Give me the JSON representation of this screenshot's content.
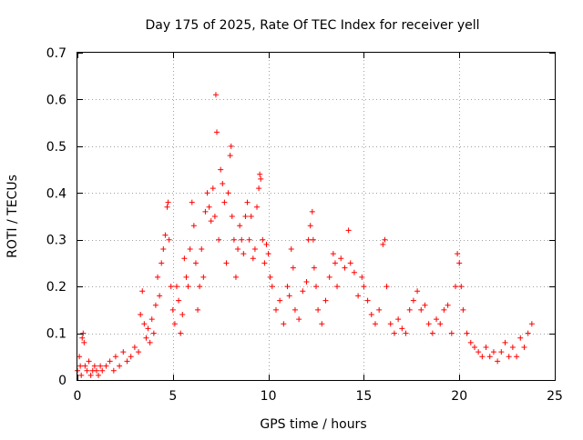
{
  "chart_data": {
    "type": "scatter",
    "title": "Day 175 of 2025, Rate Of TEC Index for receiver yell",
    "xlabel": "GPS time / hours",
    "ylabel": "ROTI / TECUs",
    "xlim": [
      0,
      25
    ],
    "ylim": [
      0,
      0.7
    ],
    "x_ticks": [
      "0",
      "5",
      "10",
      "15",
      "20",
      "25"
    ],
    "y_ticks": [
      "0",
      "0.1",
      "0.2",
      "0.3",
      "0.4",
      "0.5",
      "0.6",
      "0.7"
    ],
    "grid": true,
    "marker": "plus",
    "color": "#ff0000",
    "series": [
      {
        "points": [
          [
            0.0,
            0.02
          ],
          [
            0.1,
            0.05
          ],
          [
            0.15,
            0.03
          ],
          [
            0.2,
            0.01
          ],
          [
            0.25,
            0.09
          ],
          [
            0.3,
            0.1
          ],
          [
            0.35,
            0.08
          ],
          [
            0.4,
            0.03
          ],
          [
            0.5,
            0.02
          ],
          [
            0.6,
            0.04
          ],
          [
            0.7,
            0.01
          ],
          [
            0.8,
            0.02
          ],
          [
            0.9,
            0.03
          ],
          [
            1.0,
            0.02
          ],
          [
            1.1,
            0.01
          ],
          [
            1.2,
            0.03
          ],
          [
            1.3,
            0.02
          ],
          [
            1.5,
            0.03
          ],
          [
            1.7,
            0.04
          ],
          [
            1.9,
            0.02
          ],
          [
            2.0,
            0.05
          ],
          [
            2.2,
            0.03
          ],
          [
            2.4,
            0.06
          ],
          [
            2.6,
            0.04
          ],
          [
            2.8,
            0.05
          ],
          [
            3.0,
            0.07
          ],
          [
            3.2,
            0.06
          ],
          [
            3.3,
            0.14
          ],
          [
            3.4,
            0.19
          ],
          [
            3.5,
            0.12
          ],
          [
            3.6,
            0.09
          ],
          [
            3.7,
            0.11
          ],
          [
            3.8,
            0.08
          ],
          [
            3.9,
            0.13
          ],
          [
            4.0,
            0.1
          ],
          [
            4.1,
            0.16
          ],
          [
            4.2,
            0.22
          ],
          [
            4.3,
            0.18
          ],
          [
            4.4,
            0.25
          ],
          [
            4.5,
            0.28
          ],
          [
            4.6,
            0.31
          ],
          [
            4.7,
            0.37
          ],
          [
            4.75,
            0.38
          ],
          [
            4.8,
            0.3
          ],
          [
            4.9,
            0.2
          ],
          [
            5.0,
            0.15
          ],
          [
            5.1,
            0.12
          ],
          [
            5.2,
            0.2
          ],
          [
            5.3,
            0.17
          ],
          [
            5.4,
            0.1
          ],
          [
            5.5,
            0.14
          ],
          [
            5.6,
            0.26
          ],
          [
            5.7,
            0.22
          ],
          [
            5.8,
            0.2
          ],
          [
            5.9,
            0.28
          ],
          [
            6.0,
            0.38
          ],
          [
            6.1,
            0.33
          ],
          [
            6.2,
            0.25
          ],
          [
            6.3,
            0.15
          ],
          [
            6.4,
            0.2
          ],
          [
            6.5,
            0.28
          ],
          [
            6.6,
            0.22
          ],
          [
            6.7,
            0.36
          ],
          [
            6.8,
            0.4
          ],
          [
            6.9,
            0.37
          ],
          [
            7.0,
            0.34
          ],
          [
            7.1,
            0.41
          ],
          [
            7.2,
            0.35
          ],
          [
            7.25,
            0.61
          ],
          [
            7.3,
            0.53
          ],
          [
            7.4,
            0.3
          ],
          [
            7.5,
            0.45
          ],
          [
            7.6,
            0.42
          ],
          [
            7.7,
            0.38
          ],
          [
            7.8,
            0.25
          ],
          [
            7.9,
            0.4
          ],
          [
            8.0,
            0.48
          ],
          [
            8.05,
            0.5
          ],
          [
            8.1,
            0.35
          ],
          [
            8.2,
            0.3
          ],
          [
            8.3,
            0.22
          ],
          [
            8.4,
            0.28
          ],
          [
            8.5,
            0.33
          ],
          [
            8.6,
            0.3
          ],
          [
            8.7,
            0.27
          ],
          [
            8.8,
            0.35
          ],
          [
            8.9,
            0.38
          ],
          [
            9.0,
            0.3
          ],
          [
            9.1,
            0.35
          ],
          [
            9.2,
            0.26
          ],
          [
            9.3,
            0.28
          ],
          [
            9.4,
            0.37
          ],
          [
            9.5,
            0.41
          ],
          [
            9.55,
            0.44
          ],
          [
            9.6,
            0.43
          ],
          [
            9.7,
            0.3
          ],
          [
            9.8,
            0.25
          ],
          [
            9.9,
            0.29
          ],
          [
            10.0,
            0.27
          ],
          [
            10.1,
            0.22
          ],
          [
            10.2,
            0.2
          ],
          [
            10.4,
            0.15
          ],
          [
            10.6,
            0.17
          ],
          [
            10.8,
            0.12
          ],
          [
            11.0,
            0.2
          ],
          [
            11.1,
            0.18
          ],
          [
            11.2,
            0.28
          ],
          [
            11.3,
            0.24
          ],
          [
            11.4,
            0.15
          ],
          [
            11.6,
            0.13
          ],
          [
            11.8,
            0.19
          ],
          [
            12.0,
            0.21
          ],
          [
            12.1,
            0.3
          ],
          [
            12.2,
            0.33
          ],
          [
            12.3,
            0.36
          ],
          [
            12.35,
            0.3
          ],
          [
            12.4,
            0.24
          ],
          [
            12.5,
            0.2
          ],
          [
            12.6,
            0.15
          ],
          [
            12.8,
            0.12
          ],
          [
            13.0,
            0.17
          ],
          [
            13.2,
            0.22
          ],
          [
            13.4,
            0.27
          ],
          [
            13.5,
            0.25
          ],
          [
            13.6,
            0.2
          ],
          [
            13.8,
            0.26
          ],
          [
            14.0,
            0.24
          ],
          [
            14.2,
            0.32
          ],
          [
            14.3,
            0.25
          ],
          [
            14.5,
            0.23
          ],
          [
            14.7,
            0.18
          ],
          [
            14.9,
            0.22
          ],
          [
            15.0,
            0.2
          ],
          [
            15.2,
            0.17
          ],
          [
            15.4,
            0.14
          ],
          [
            15.6,
            0.12
          ],
          [
            15.8,
            0.15
          ],
          [
            16.0,
            0.29
          ],
          [
            16.1,
            0.3
          ],
          [
            16.2,
            0.2
          ],
          [
            16.4,
            0.12
          ],
          [
            16.6,
            0.1
          ],
          [
            16.8,
            0.13
          ],
          [
            17.0,
            0.11
          ],
          [
            17.2,
            0.1
          ],
          [
            17.4,
            0.15
          ],
          [
            17.6,
            0.17
          ],
          [
            17.8,
            0.19
          ],
          [
            18.0,
            0.15
          ],
          [
            18.2,
            0.16
          ],
          [
            18.4,
            0.12
          ],
          [
            18.6,
            0.1
          ],
          [
            18.8,
            0.13
          ],
          [
            19.0,
            0.12
          ],
          [
            19.2,
            0.15
          ],
          [
            19.4,
            0.16
          ],
          [
            19.6,
            0.1
          ],
          [
            19.8,
            0.2
          ],
          [
            19.9,
            0.27
          ],
          [
            20.0,
            0.25
          ],
          [
            20.1,
            0.2
          ],
          [
            20.2,
            0.15
          ],
          [
            20.4,
            0.1
          ],
          [
            20.6,
            0.08
          ],
          [
            20.8,
            0.07
          ],
          [
            21.0,
            0.06
          ],
          [
            21.2,
            0.05
          ],
          [
            21.4,
            0.07
          ],
          [
            21.6,
            0.05
          ],
          [
            21.8,
            0.06
          ],
          [
            22.0,
            0.04
          ],
          [
            22.2,
            0.06
          ],
          [
            22.4,
            0.08
          ],
          [
            22.6,
            0.05
          ],
          [
            22.8,
            0.07
          ],
          [
            23.0,
            0.05
          ],
          [
            23.2,
            0.09
          ],
          [
            23.4,
            0.07
          ],
          [
            23.6,
            0.1
          ],
          [
            23.8,
            0.12
          ]
        ]
      }
    ]
  }
}
